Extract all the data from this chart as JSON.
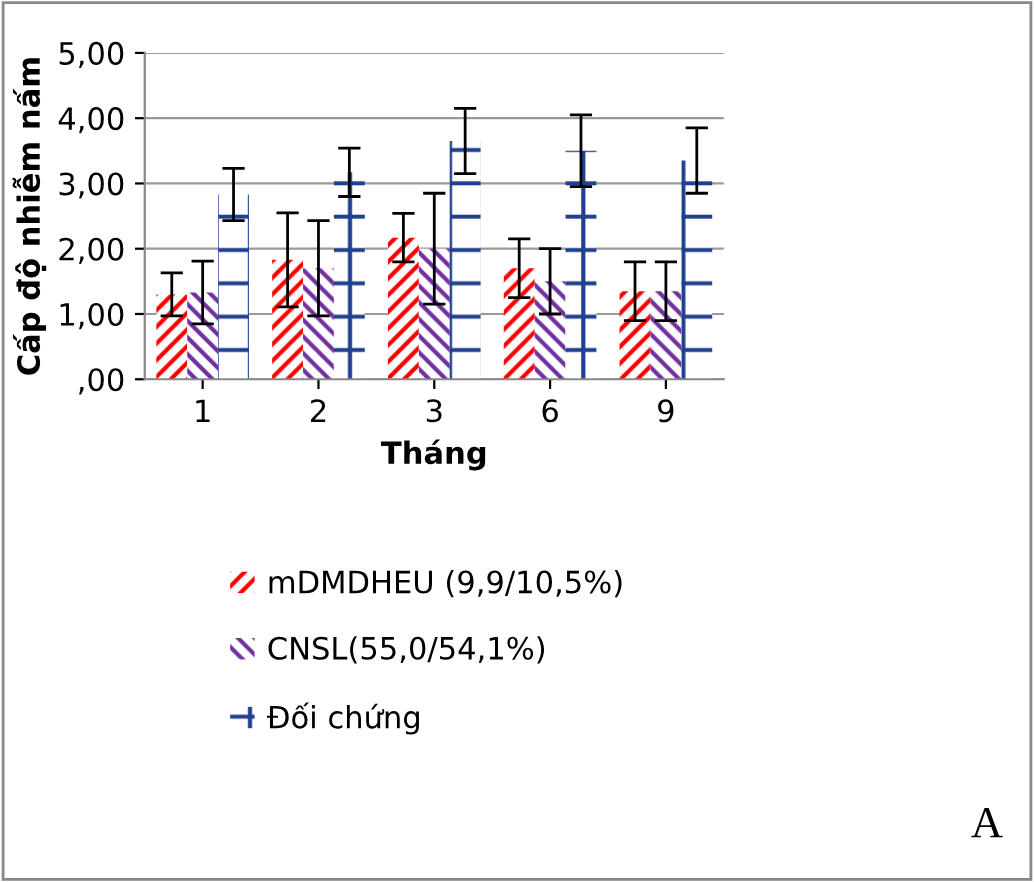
{
  "chart_data": {
    "type": "bar",
    "xlabel": "Tháng",
    "ylabel": "Cấp độ nhiễm nấm",
    "categories": [
      "1",
      "2",
      "3",
      "6",
      "9"
    ],
    "series": [
      {
        "name": "mDMDHEU (9,9/10,5%)",
        "color": "#ff0000",
        "values": [
          1.3,
          1.83,
          2.17,
          1.7,
          1.35
        ],
        "errors": [
          0.33,
          0.72,
          0.37,
          0.45,
          0.45
        ]
      },
      {
        "name": "CNSL(55,0/54,1%)",
        "color": "#7030a0",
        "values": [
          1.33,
          1.7,
          2.0,
          1.5,
          1.35
        ],
        "errors": [
          0.48,
          0.73,
          0.85,
          0.5,
          0.45
        ]
      },
      {
        "name": "Đối chứng",
        "color": "#1f3f8f",
        "values": [
          2.83,
          3.17,
          3.65,
          3.5,
          3.35
        ],
        "errors": [
          0.4,
          0.37,
          0.5,
          0.55,
          0.5
        ]
      }
    ],
    "ylim": [
      0,
      5
    ],
    "yticks": [
      {
        "value": 0,
        "label": ",00"
      },
      {
        "value": 1,
        "label": "1,00"
      },
      {
        "value": 2,
        "label": "2,00"
      },
      {
        "value": 3,
        "label": "3,00"
      },
      {
        "value": 4,
        "label": "4,00"
      },
      {
        "value": 5,
        "label": "5,00"
      }
    ],
    "grid": "y",
    "legend": "bottom",
    "annotations": [
      "A"
    ]
  }
}
